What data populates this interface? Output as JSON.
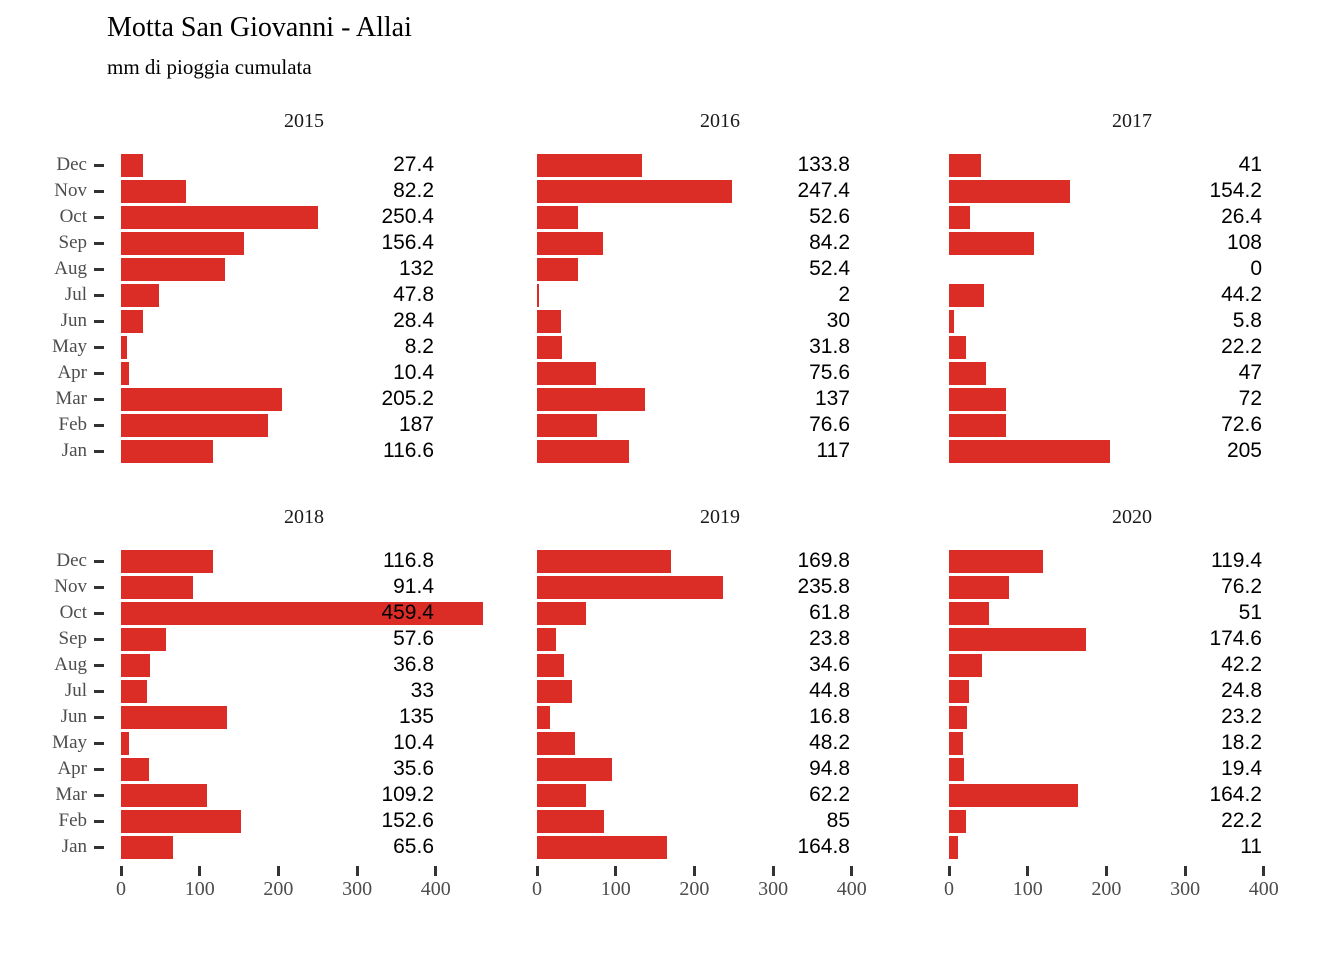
{
  "header": {
    "title": "Motta San Giovanni - Allai",
    "subtitle": "mm di pioggia cumulata"
  },
  "colors": {
    "bar": "#db2d26",
    "axis_text": "#4d4d4d",
    "tick_mark": "#333333",
    "facet_title_text": "#1a1a1a",
    "value_text": "#000000",
    "background": "#ffffff"
  },
  "chart_data": {
    "type": "bar",
    "orientation": "horizontal",
    "title": "Motta San Giovanni - Allai",
    "subtitle": "mm di pioggia cumulata",
    "categories": [
      "Dec",
      "Nov",
      "Oct",
      "Sep",
      "Aug",
      "Jul",
      "Jun",
      "May",
      "Apr",
      "Mar",
      "Feb",
      "Jan"
    ],
    "facet_layout": {
      "rows": 2,
      "cols": 3,
      "legend": "none",
      "grid": "off",
      "value_labels": "right-aligned"
    },
    "x_ticks": [
      0,
      100,
      200,
      300,
      400
    ],
    "xlim": [
      0,
      463
    ],
    "series": [
      {
        "name": "2015",
        "values": [
          27.4,
          82.2,
          250.4,
          156.4,
          132,
          47.8,
          28.4,
          8.2,
          10.4,
          205.2,
          187,
          116.6
        ]
      },
      {
        "name": "2016",
        "values": [
          133.8,
          247.4,
          52.6,
          84.2,
          52.4,
          2,
          30,
          31.8,
          75.6,
          137,
          76.6,
          117
        ]
      },
      {
        "name": "2017",
        "values": [
          41,
          154.2,
          26.4,
          108,
          0,
          44.2,
          5.8,
          22.2,
          47,
          72,
          72.6,
          205
        ]
      },
      {
        "name": "2018",
        "values": [
          116.8,
          91.4,
          459.4,
          57.6,
          36.8,
          33,
          135,
          10.4,
          35.6,
          109.2,
          152.6,
          65.6
        ]
      },
      {
        "name": "2019",
        "values": [
          169.8,
          235.8,
          61.8,
          23.8,
          34.6,
          44.8,
          16.8,
          48.2,
          94.8,
          62.2,
          85,
          164.8
        ]
      },
      {
        "name": "2020",
        "values": [
          119.4,
          76.2,
          51,
          174.6,
          42.2,
          24.8,
          23.2,
          18.2,
          19.4,
          164.2,
          22.2,
          11
        ]
      }
    ]
  }
}
